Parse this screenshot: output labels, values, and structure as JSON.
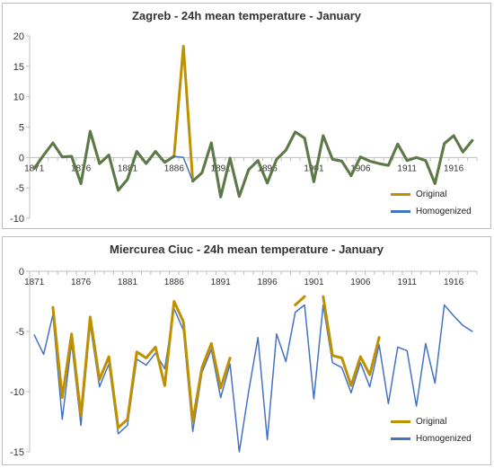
{
  "colors": {
    "original": "#bf9000",
    "homogenized": "#4472c4",
    "overlap": "#5a7a4e",
    "axis": "#bfbfbf",
    "text": "#333333"
  },
  "chart_data": [
    {
      "type": "line",
      "title": "Zagreb - 24h mean temperature - January",
      "xlabel": "",
      "ylabel": "",
      "ylim": [
        -10,
        20
      ],
      "yticks": [
        "20",
        "15",
        "10",
        "5",
        "0",
        "-5",
        "-10"
      ],
      "xticks": [
        "1871",
        "1876",
        "1881",
        "1886",
        "1891",
        "1896",
        "1901",
        "1906",
        "1911",
        "1916"
      ],
      "grid": false,
      "legend": "bottom-right",
      "x": [
        1871,
        1872,
        1873,
        1874,
        1875,
        1876,
        1877,
        1878,
        1879,
        1880,
        1881,
        1882,
        1883,
        1884,
        1885,
        1886,
        1887,
        1888,
        1889,
        1890,
        1891,
        1892,
        1893,
        1894,
        1895,
        1896,
        1897,
        1898,
        1899,
        1900,
        1901,
        1902,
        1903,
        1904,
        1905,
        1906,
        1907,
        1908,
        1909,
        1910,
        1911,
        1912,
        1913,
        1914,
        1915,
        1916,
        1917,
        1918
      ],
      "series": [
        {
          "name": "Original",
          "values": [
            -1.8,
            0.4,
            2.4,
            0.1,
            0.2,
            -4.3,
            4.3,
            -1.0,
            0.4,
            -5.4,
            -3.6,
            1.0,
            -1.0,
            1.0,
            -0.8,
            0.2,
            18.3,
            -3.9,
            -2.5,
            2.4,
            -6.5,
            -0.1,
            -6.4,
            -2.0,
            -0.5,
            -4.2,
            -0.3,
            1.2,
            4.2,
            3.2,
            -4.0,
            3.6,
            -0.3,
            -0.6,
            -3.0,
            0.1,
            -0.6,
            -1.0,
            -1.3,
            2.2,
            -0.5,
            0.0,
            -0.5,
            -4.3,
            2.3,
            3.6,
            0.9,
            2.8
          ]
        },
        {
          "name": "Homogenized",
          "values": [
            -1.8,
            0.4,
            2.4,
            0.1,
            0.2,
            -4.3,
            4.3,
            -1.0,
            0.4,
            -5.4,
            -3.6,
            1.0,
            -1.0,
            1.0,
            -0.8,
            0.2,
            0.0,
            -3.9,
            -2.5,
            2.4,
            -6.5,
            -0.1,
            -6.4,
            -2.0,
            -0.5,
            -4.2,
            -0.3,
            1.2,
            4.2,
            3.2,
            -4.0,
            3.6,
            -0.3,
            -0.6,
            -3.0,
            0.1,
            -0.6,
            -1.0,
            -1.3,
            2.2,
            -0.5,
            0.0,
            -0.5,
            -4.3,
            2.3,
            3.6,
            0.9,
            2.8
          ]
        }
      ]
    },
    {
      "type": "line",
      "title": "Miercurea Ciuc - 24h mean temperature - January",
      "xlabel": "",
      "ylabel": "",
      "ylim": [
        -15,
        0
      ],
      "yticks": [
        "0",
        "-5",
        "-10",
        "-15"
      ],
      "xticks": [
        "1871",
        "1876",
        "1881",
        "1886",
        "1891",
        "1896",
        "1901",
        "1906",
        "1911",
        "1916"
      ],
      "grid": false,
      "legend": "bottom-right",
      "x": [
        1871,
        1872,
        1873,
        1874,
        1875,
        1876,
        1877,
        1878,
        1879,
        1880,
        1881,
        1882,
        1883,
        1884,
        1885,
        1886,
        1887,
        1888,
        1889,
        1890,
        1891,
        1892,
        1893,
        1894,
        1895,
        1896,
        1897,
        1898,
        1899,
        1900,
        1901,
        1902,
        1903,
        1904,
        1905,
        1906,
        1907,
        1908,
        1909,
        1910,
        1911,
        1912,
        1913,
        1914,
        1915,
        1916,
        1917,
        1918
      ],
      "series": [
        {
          "name": "Original",
          "values": [
            null,
            null,
            -3.0,
            -10.5,
            -5.2,
            -12.0,
            -3.8,
            -9.0,
            -7.1,
            -13.0,
            -12.3,
            -6.7,
            -7.2,
            -6.3,
            -9.5,
            -2.5,
            -4.2,
            -12.5,
            -8.0,
            -6.0,
            -9.7,
            -7.2,
            null,
            null,
            null,
            null,
            null,
            null,
            -2.8,
            -2.1,
            null,
            -2.1,
            -7.0,
            -7.2,
            -9.5,
            -7.1,
            -8.6,
            -5.5,
            null,
            null,
            null,
            null,
            null,
            null,
            null,
            null,
            null,
            null
          ]
        },
        {
          "name": "Homogenized",
          "values": [
            -5.3,
            -6.9,
            -3.6,
            -12.3,
            -5.9,
            -12.8,
            -4.4,
            -9.6,
            -7.7,
            -13.5,
            -12.8,
            -7.3,
            -7.8,
            -6.8,
            -8.1,
            -3.1,
            -4.9,
            -13.3,
            -8.4,
            -6.5,
            -10.5,
            -7.7,
            -15.0,
            -10.0,
            -5.5,
            -14.0,
            -5.2,
            -7.5,
            -3.4,
            -2.8,
            -10.6,
            -2.8,
            -7.6,
            -8.0,
            -10.1,
            -7.6,
            -9.6,
            -6.1,
            -11.0,
            -6.3,
            -6.6,
            -11.2,
            -6.0,
            -9.3,
            -2.8,
            -3.7,
            -4.5,
            -5.0
          ]
        }
      ]
    }
  ]
}
